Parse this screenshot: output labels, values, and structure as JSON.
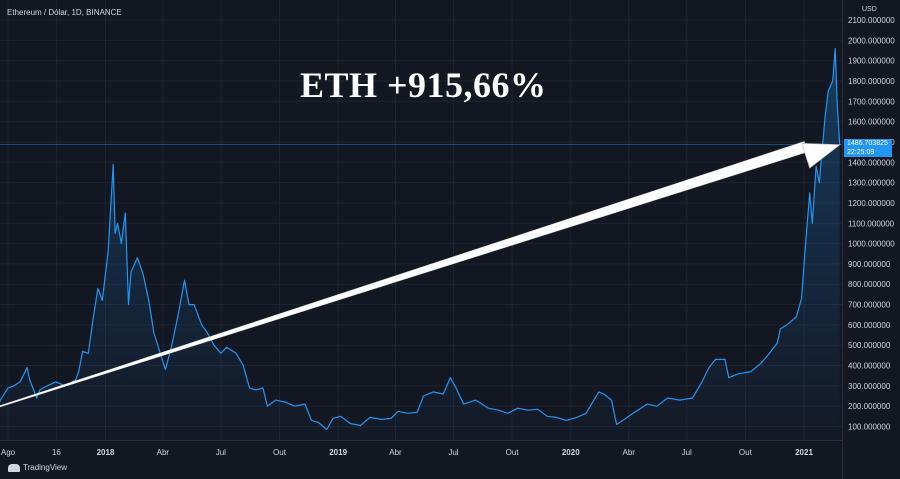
{
  "header": {
    "symbol": "Ethereum / Dólar, 1D, BINANCE"
  },
  "axis": {
    "currency": "USD"
  },
  "headline": "ETH +915,66%",
  "price_label": {
    "price": "1486.703825",
    "time": "22:25:09"
  },
  "footer": {
    "brand": "TradingView"
  },
  "colors": {
    "background": "#131722",
    "line": "#2196f3",
    "arrow": "#ffffff",
    "price_line": "#2196f3"
  },
  "chart_data": {
    "type": "line",
    "ylim": [
      55,
      2150
    ],
    "yticks": [
      "100.000000",
      "200.000000",
      "300.000000",
      "400.000000",
      "500.000000",
      "600.000000",
      "700.000000",
      "800.000000",
      "900.000000",
      "1000.000000",
      "1100.000000",
      "1200.000000",
      "1300.000000",
      "1400.000000",
      "1500.000000",
      "1600.000000",
      "1700.000000",
      "1800.000000",
      "1900.000000",
      "2000.000000",
      "2100.000000"
    ],
    "xticks": [
      {
        "label": "Ago",
        "x": "2017-08-01"
      },
      {
        "label": "16",
        "x": "2017-10-16"
      },
      {
        "label": "2018",
        "x": "2018-01-01",
        "bold": true
      },
      {
        "label": "Abr",
        "x": "2018-04-01"
      },
      {
        "label": "Jul",
        "x": "2018-07-01"
      },
      {
        "label": "Out",
        "x": "2018-10-01"
      },
      {
        "label": "2019",
        "x": "2019-01-01",
        "bold": true
      },
      {
        "label": "Abr",
        "x": "2019-04-01"
      },
      {
        "label": "Jul",
        "x": "2019-07-01"
      },
      {
        "label": "Out",
        "x": "2019-10-01"
      },
      {
        "label": "2020",
        "x": "2020-01-01",
        "bold": true
      },
      {
        "label": "Abr",
        "x": "2020-04-01"
      },
      {
        "label": "Jul",
        "x": "2020-07-01"
      },
      {
        "label": "Out",
        "x": "2020-10-01"
      },
      {
        "label": "2021",
        "x": "2021-01-01",
        "bold": true
      }
    ],
    "current_price": 1486.703825,
    "series": [
      {
        "points": [
          [
            "2017-07-15",
            195
          ],
          [
            "2017-07-20",
            230
          ],
          [
            "2017-08-01",
            290
          ],
          [
            "2017-08-10",
            300
          ],
          [
            "2017-08-20",
            320
          ],
          [
            "2017-08-31",
            390
          ],
          [
            "2017-09-04",
            330
          ],
          [
            "2017-09-15",
            240
          ],
          [
            "2017-09-20",
            280
          ],
          [
            "2017-10-01",
            300
          ],
          [
            "2017-10-15",
            320
          ],
          [
            "2017-10-30",
            300
          ],
          [
            "2017-11-15",
            330
          ],
          [
            "2017-11-20",
            370
          ],
          [
            "2017-11-26",
            470
          ],
          [
            "2017-12-05",
            460
          ],
          [
            "2017-12-12",
            620
          ],
          [
            "2017-12-20",
            780
          ],
          [
            "2017-12-27",
            720
          ],
          [
            "2018-01-05",
            960
          ],
          [
            "2018-01-13",
            1390
          ],
          [
            "2018-01-16",
            1050
          ],
          [
            "2018-01-20",
            1100
          ],
          [
            "2018-01-26",
            1000
          ],
          [
            "2018-02-01",
            1150
          ],
          [
            "2018-02-06",
            700
          ],
          [
            "2018-02-10",
            860
          ],
          [
            "2018-02-20",
            930
          ],
          [
            "2018-03-01",
            850
          ],
          [
            "2018-03-10",
            720
          ],
          [
            "2018-03-18",
            560
          ],
          [
            "2018-03-25",
            490
          ],
          [
            "2018-04-05",
            380
          ],
          [
            "2018-04-15",
            500
          ],
          [
            "2018-04-25",
            650
          ],
          [
            "2018-05-05",
            820
          ],
          [
            "2018-05-12",
            700
          ],
          [
            "2018-05-20",
            700
          ],
          [
            "2018-06-01",
            600
          ],
          [
            "2018-06-10",
            560
          ],
          [
            "2018-06-20",
            500
          ],
          [
            "2018-07-01",
            460
          ],
          [
            "2018-07-10",
            490
          ],
          [
            "2018-07-25",
            460
          ],
          [
            "2018-08-05",
            400
          ],
          [
            "2018-08-15",
            290
          ],
          [
            "2018-08-25",
            280
          ],
          [
            "2018-09-05",
            290
          ],
          [
            "2018-09-12",
            200
          ],
          [
            "2018-09-25",
            230
          ],
          [
            "2018-10-10",
            220
          ],
          [
            "2018-10-25",
            200
          ],
          [
            "2018-11-10",
            210
          ],
          [
            "2018-11-20",
            130
          ],
          [
            "2018-12-01",
            120
          ],
          [
            "2018-12-14",
            85
          ],
          [
            "2018-12-24",
            140
          ],
          [
            "2019-01-05",
            150
          ],
          [
            "2019-01-20",
            115
          ],
          [
            "2019-02-05",
            105
          ],
          [
            "2019-02-20",
            145
          ],
          [
            "2019-03-10",
            135
          ],
          [
            "2019-03-25",
            140
          ],
          [
            "2019-04-05",
            175
          ],
          [
            "2019-04-20",
            165
          ],
          [
            "2019-05-05",
            170
          ],
          [
            "2019-05-15",
            250
          ],
          [
            "2019-05-30",
            270
          ],
          [
            "2019-06-15",
            260
          ],
          [
            "2019-06-26",
            340
          ],
          [
            "2019-07-05",
            290
          ],
          [
            "2019-07-17",
            210
          ],
          [
            "2019-08-05",
            230
          ],
          [
            "2019-08-25",
            190
          ],
          [
            "2019-09-10",
            180
          ],
          [
            "2019-09-24",
            165
          ],
          [
            "2019-10-10",
            190
          ],
          [
            "2019-10-26",
            180
          ],
          [
            "2019-11-10",
            185
          ],
          [
            "2019-11-25",
            150
          ],
          [
            "2019-12-10",
            145
          ],
          [
            "2019-12-25",
            130
          ],
          [
            "2020-01-10",
            145
          ],
          [
            "2020-01-25",
            165
          ],
          [
            "2020-02-14",
            270
          ],
          [
            "2020-02-22",
            260
          ],
          [
            "2020-03-05",
            230
          ],
          [
            "2020-03-13",
            110
          ],
          [
            "2020-03-25",
            135
          ],
          [
            "2020-04-10",
            170
          ],
          [
            "2020-04-30",
            210
          ],
          [
            "2020-05-15",
            200
          ],
          [
            "2020-06-01",
            240
          ],
          [
            "2020-06-20",
            230
          ],
          [
            "2020-07-10",
            240
          ],
          [
            "2020-07-25",
            320
          ],
          [
            "2020-08-05",
            390
          ],
          [
            "2020-08-15",
            430
          ],
          [
            "2020-08-30",
            430
          ],
          [
            "2020-09-05",
            340
          ],
          [
            "2020-09-20",
            360
          ],
          [
            "2020-10-10",
            370
          ],
          [
            "2020-10-25",
            410
          ],
          [
            "2020-11-05",
            450
          ],
          [
            "2020-11-20",
            510
          ],
          [
            "2020-11-25",
            580
          ],
          [
            "2020-12-05",
            600
          ],
          [
            "2020-12-20",
            640
          ],
          [
            "2020-12-28",
            730
          ],
          [
            "2021-01-03",
            980
          ],
          [
            "2021-01-10",
            1250
          ],
          [
            "2021-01-14",
            1100
          ],
          [
            "2021-01-20",
            1380
          ],
          [
            "2021-01-25",
            1300
          ],
          [
            "2021-02-03",
            1620
          ],
          [
            "2021-02-08",
            1750
          ],
          [
            "2021-02-15",
            1800
          ],
          [
            "2021-02-19",
            1960
          ],
          [
            "2021-02-22",
            1700
          ],
          [
            "2021-02-26",
            1486.7
          ]
        ]
      }
    ]
  }
}
